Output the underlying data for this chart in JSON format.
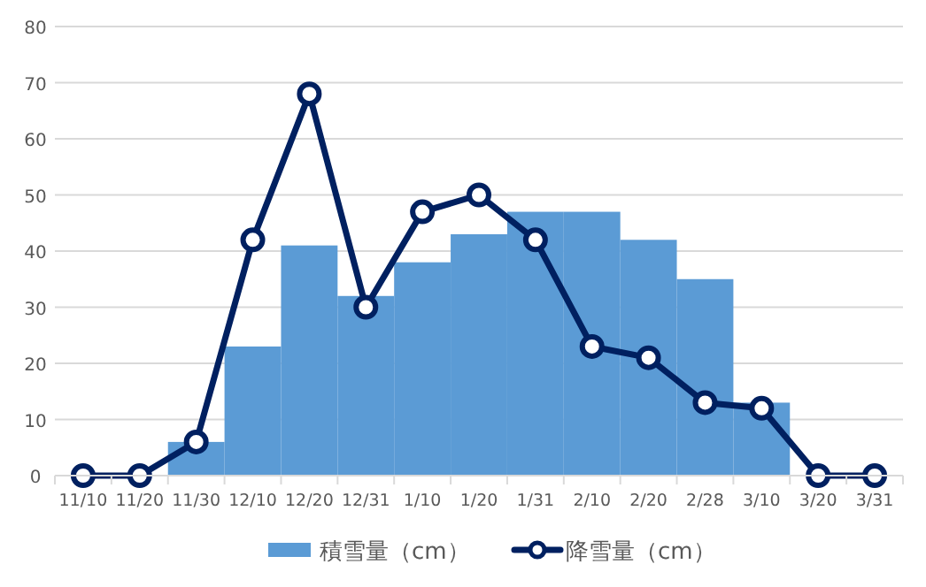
{
  "chart_data": {
    "type": "bar",
    "categories": [
      "11/10",
      "11/20",
      "11/30",
      "12/10",
      "12/20",
      "12/31",
      "1/10",
      "1/20",
      "1/31",
      "2/10",
      "2/20",
      "2/28",
      "3/10",
      "3/20",
      "3/31"
    ],
    "series": [
      {
        "name": "積雪量（cm）",
        "color": "#5b9bd5",
        "values": [
          0,
          0,
          6,
          23,
          41,
          32,
          38,
          43,
          47,
          47,
          42,
          35,
          13,
          0,
          0
        ]
      },
      {
        "name": "降雪量（cm）",
        "type": "line",
        "color": "#002060",
        "marker": "circle",
        "line_style": "solid",
        "values": [
          0,
          0,
          6,
          42,
          68,
          30,
          47,
          50,
          42,
          23,
          21,
          13,
          12,
          0,
          0
        ]
      }
    ],
    "ylim": [
      0,
      80
    ],
    "yticks": [
      0,
      10,
      20,
      30,
      40,
      50,
      60,
      70,
      80
    ],
    "grid": "y",
    "legend": "bottom"
  }
}
